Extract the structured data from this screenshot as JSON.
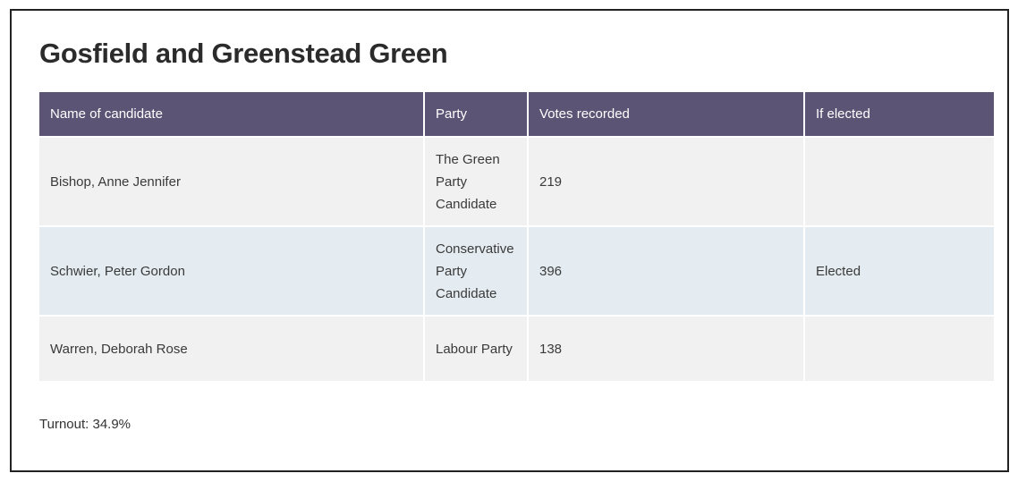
{
  "page": {
    "title": "Gosfield and Greenstead Green"
  },
  "table": {
    "headers": {
      "candidate": "Name of candidate",
      "party": "Party",
      "votes": "Votes recorded",
      "elected": "If elected"
    },
    "rows": [
      {
        "candidate": "Bishop, Anne Jennifer",
        "party": "The Green Party Candidate",
        "votes": "219",
        "elected": ""
      },
      {
        "candidate": "Schwier, Peter Gordon",
        "party": "Conservative Party Candidate",
        "votes": "396",
        "elected": "Elected"
      },
      {
        "candidate": "Warren, Deborah Rose",
        "party": "Labour Party",
        "votes": "138",
        "elected": ""
      }
    ]
  },
  "footer": {
    "turnout": "Turnout: 34.9%"
  },
  "colors": {
    "header_bg": "#5b5475",
    "row_odd_bg": "#f1f1f2",
    "row_even_bg": "#e4ecf1"
  }
}
